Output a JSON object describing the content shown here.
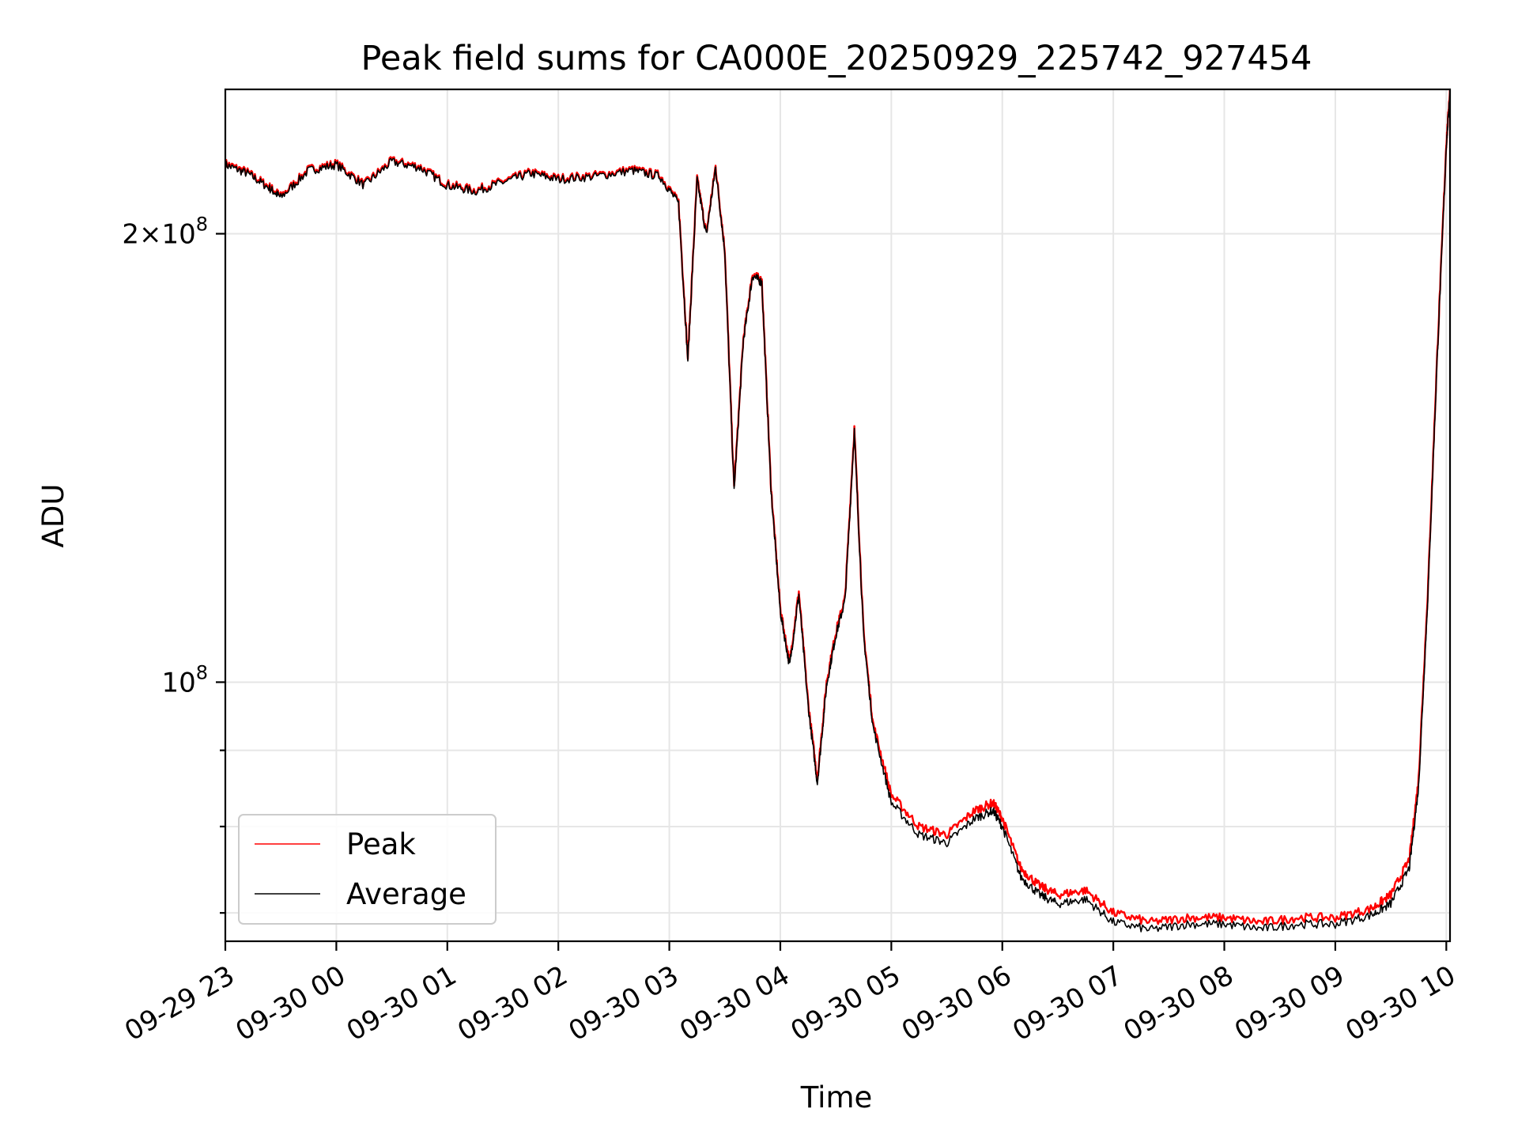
{
  "chart_data": {
    "type": "line",
    "title": "Peak field sums for CA000E_20250929_225742_927454",
    "xlabel": "Time",
    "ylabel": "ADU",
    "yscale": "log",
    "x_unit": "hours",
    "xlim": [
      "09-29 23:00",
      "09-30 10:02"
    ],
    "ylim": [
      67000000,
      250000000
    ],
    "x_ticks": [
      "09-29 23",
      "09-30 00",
      "09-30 01",
      "09-30 02",
      "09-30 03",
      "09-30 04",
      "09-30 05",
      "09-30 06",
      "09-30 07",
      "09-30 08",
      "09-30 09",
      "09-30 10"
    ],
    "y_ticks": [
      {
        "value": 200000000,
        "base": "2×10",
        "exp": "8"
      },
      {
        "value": 100000000,
        "base": "10",
        "exp": "8"
      }
    ],
    "y_minor_ticks": [
      90000000,
      80000000,
      70000000
    ],
    "grid": true,
    "legend": "lower-left",
    "colors": {
      "peak": "#ff0000",
      "average": "#000000"
    },
    "series": [
      {
        "name": "Peak",
        "color": "#ff0000",
        "x": [
          "09-29 23:00",
          "09-29 23:12",
          "09-29 23:24",
          "09-29 23:30",
          "09-29 23:45",
          "09-30 00:00",
          "09-30 00:15",
          "09-30 00:30",
          "09-30 00:45",
          "09-30 01:00",
          "09-30 01:15",
          "09-30 01:30",
          "09-30 01:45",
          "09-30 02:00",
          "09-30 02:20",
          "09-30 02:40",
          "09-30 02:55",
          "09-30 03:05",
          "09-30 03:10",
          "09-30 03:15",
          "09-30 03:20",
          "09-30 03:25",
          "09-30 03:30",
          "09-30 03:35",
          "09-30 03:40",
          "09-30 03:45",
          "09-30 03:50",
          "09-30 03:55",
          "09-30 04:00",
          "09-30 04:05",
          "09-30 04:10",
          "09-30 04:15",
          "09-30 04:20",
          "09-30 04:25",
          "09-30 04:30",
          "09-30 04:35",
          "09-30 04:40",
          "09-30 04:45",
          "09-30 04:50",
          "09-30 05:00",
          "09-30 05:15",
          "09-30 05:30",
          "09-30 05:45",
          "09-30 05:55",
          "09-30 06:00",
          "09-30 06:10",
          "09-30 06:20",
          "09-30 06:30",
          "09-30 06:45",
          "09-30 07:00",
          "09-30 07:20",
          "09-30 07:40",
          "09-30 08:00",
          "09-30 08:20",
          "09-30 08:40",
          "09-30 09:00",
          "09-30 09:20",
          "09-30 09:30",
          "09-30 09:40",
          "09-30 09:45",
          "09-30 09:50",
          "09-30 09:55",
          "09-30 10:00",
          "09-30 10:02"
        ],
        "y": [
          223000000,
          220000000,
          215000000,
          212000000,
          221000000,
          223000000,
          216000000,
          224000000,
          222000000,
          216000000,
          214000000,
          217000000,
          220000000,
          218000000,
          219000000,
          221000000,
          219000000,
          210000000,
          165000000,
          218000000,
          200000000,
          222000000,
          195000000,
          135000000,
          170000000,
          188000000,
          186000000,
          135000000,
          112000000,
          103000000,
          115000000,
          97000000,
          86000000,
          100000000,
          108000000,
          114000000,
          148000000,
          108000000,
          94000000,
          84000000,
          80000000,
          79000000,
          82000000,
          83000000,
          81000000,
          75000000,
          73000000,
          72000000,
          72500000,
          70000000,
          69000000,
          69500000,
          69500000,
          69000000,
          69500000,
          69500000,
          70500000,
          72000000,
          76000000,
          86000000,
          115000000,
          165000000,
          230000000,
          250000000
        ]
      },
      {
        "name": "Average",
        "color": "#000000",
        "x": [
          "09-29 23:00",
          "09-29 23:12",
          "09-29 23:24",
          "09-29 23:30",
          "09-29 23:45",
          "09-30 00:00",
          "09-30 00:15",
          "09-30 00:30",
          "09-30 00:45",
          "09-30 01:00",
          "09-30 01:15",
          "09-30 01:30",
          "09-30 01:45",
          "09-30 02:00",
          "09-30 02:20",
          "09-30 02:40",
          "09-30 02:55",
          "09-30 03:05",
          "09-30 03:10",
          "09-30 03:15",
          "09-30 03:20",
          "09-30 03:25",
          "09-30 03:30",
          "09-30 03:35",
          "09-30 03:40",
          "09-30 03:45",
          "09-30 03:50",
          "09-30 03:55",
          "09-30 04:00",
          "09-30 04:05",
          "09-30 04:10",
          "09-30 04:15",
          "09-30 04:20",
          "09-30 04:25",
          "09-30 04:30",
          "09-30 04:35",
          "09-30 04:40",
          "09-30 04:45",
          "09-30 04:50",
          "09-30 05:00",
          "09-30 05:15",
          "09-30 05:30",
          "09-30 05:45",
          "09-30 05:55",
          "09-30 06:00",
          "09-30 06:10",
          "09-30 06:20",
          "09-30 06:30",
          "09-30 06:45",
          "09-30 07:00",
          "09-30 07:20",
          "09-30 07:40",
          "09-30 08:00",
          "09-30 08:20",
          "09-30 08:40",
          "09-30 09:00",
          "09-30 09:20",
          "09-30 09:30",
          "09-30 09:40",
          "09-30 09:45",
          "09-30 09:50",
          "09-30 09:55",
          "09-30 10:00",
          "09-30 10:02"
        ],
        "y": [
          222500000,
          219500000,
          214500000,
          211500000,
          220500000,
          222500000,
          215500000,
          223500000,
          221500000,
          215500000,
          213500000,
          216500000,
          219500000,
          217500000,
          218500000,
          220500000,
          218500000,
          209500000,
          164500000,
          217500000,
          199500000,
          221500000,
          194500000,
          134500000,
          169500000,
          187500000,
          185500000,
          134500000,
          111500000,
          102500000,
          114500000,
          96500000,
          85500000,
          99500000,
          107500000,
          113500000,
          147500000,
          107500000,
          93500000,
          83000000,
          79000000,
          78000000,
          81000000,
          82000000,
          80000000,
          74000000,
          72000000,
          71000000,
          71500000,
          69000000,
          68200000,
          68800000,
          68800000,
          68300000,
          68800000,
          68800000,
          69800000,
          71000000,
          75000000,
          85000000,
          114000000,
          164000000,
          229000000,
          249500000
        ]
      }
    ]
  }
}
